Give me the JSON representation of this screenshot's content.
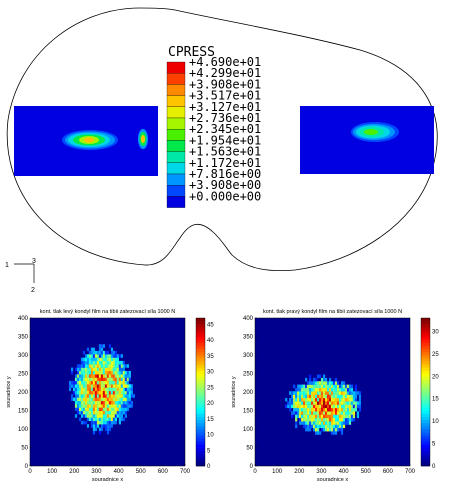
{
  "fea_view": {
    "legend": {
      "title": "CPRESS",
      "entries": [
        {
          "label": "+4.690e+01",
          "color": "#ee0000"
        },
        {
          "label": "+4.299e+01",
          "color": "#ff4000"
        },
        {
          "label": "+3.908e+01",
          "color": "#ff8a00"
        },
        {
          "label": "+3.517e+01",
          "color": "#ffc400"
        },
        {
          "label": "+3.127e+01",
          "color": "#e6ef00"
        },
        {
          "label": "+2.736e+01",
          "color": "#a6f500"
        },
        {
          "label": "+2.345e+01",
          "color": "#4af000"
        },
        {
          "label": "+1.954e+01",
          "color": "#00e84a"
        },
        {
          "label": "+1.563e+01",
          "color": "#00e8a8"
        },
        {
          "label": "+1.172e+01",
          "color": "#00d8e8"
        },
        {
          "label": "+7.816e+00",
          "color": "#0096ff"
        },
        {
          "label": "+3.908e+00",
          "color": "#0048ff"
        },
        {
          "label": "+0.000e+00",
          "color": "#0000e0"
        }
      ]
    },
    "triad": {
      "axis_1": "1",
      "axis_2": "2",
      "axis_3": "3"
    }
  },
  "chart_data": [
    {
      "type": "heatmap",
      "title": "kont. tlak levý kondyl film na tibii zatezovací síla 1000 N",
      "xlabel": "souradnice x",
      "ylabel": "souradnice y",
      "xlim": [
        0,
        700
      ],
      "ylim": [
        0,
        400
      ],
      "xticks": [
        0,
        100,
        200,
        300,
        400,
        500,
        600,
        700
      ],
      "yticks": [
        0,
        50,
        100,
        150,
        200,
        250,
        300,
        350,
        400
      ],
      "colorbar": {
        "ticks": [
          0,
          5,
          10,
          15,
          20,
          25,
          30,
          35,
          40,
          45
        ],
        "range": [
          0,
          47
        ]
      },
      "blob": {
        "cx": 320,
        "cy": 205,
        "rx": 135,
        "ry": 110,
        "peak": 44
      }
    },
    {
      "type": "heatmap",
      "title": "kont. tlak pravý kondyl film na tibii zatezovací síla 1000 N",
      "xlabel": "souradnice x",
      "ylabel": "souradnice y",
      "xlim": [
        0,
        700
      ],
      "ylim": [
        0,
        400
      ],
      "xticks": [
        0,
        100,
        200,
        300,
        400,
        500,
        600,
        700
      ],
      "yticks": [
        0,
        50,
        100,
        150,
        200,
        250,
        300,
        350,
        400
      ],
      "colorbar": {
        "ticks": [
          0,
          5,
          10,
          15,
          20,
          25,
          30
        ],
        "range": [
          0,
          33
        ]
      },
      "blob": {
        "cx": 310,
        "cy": 160,
        "rx": 165,
        "ry": 75,
        "peak": 31
      }
    }
  ]
}
